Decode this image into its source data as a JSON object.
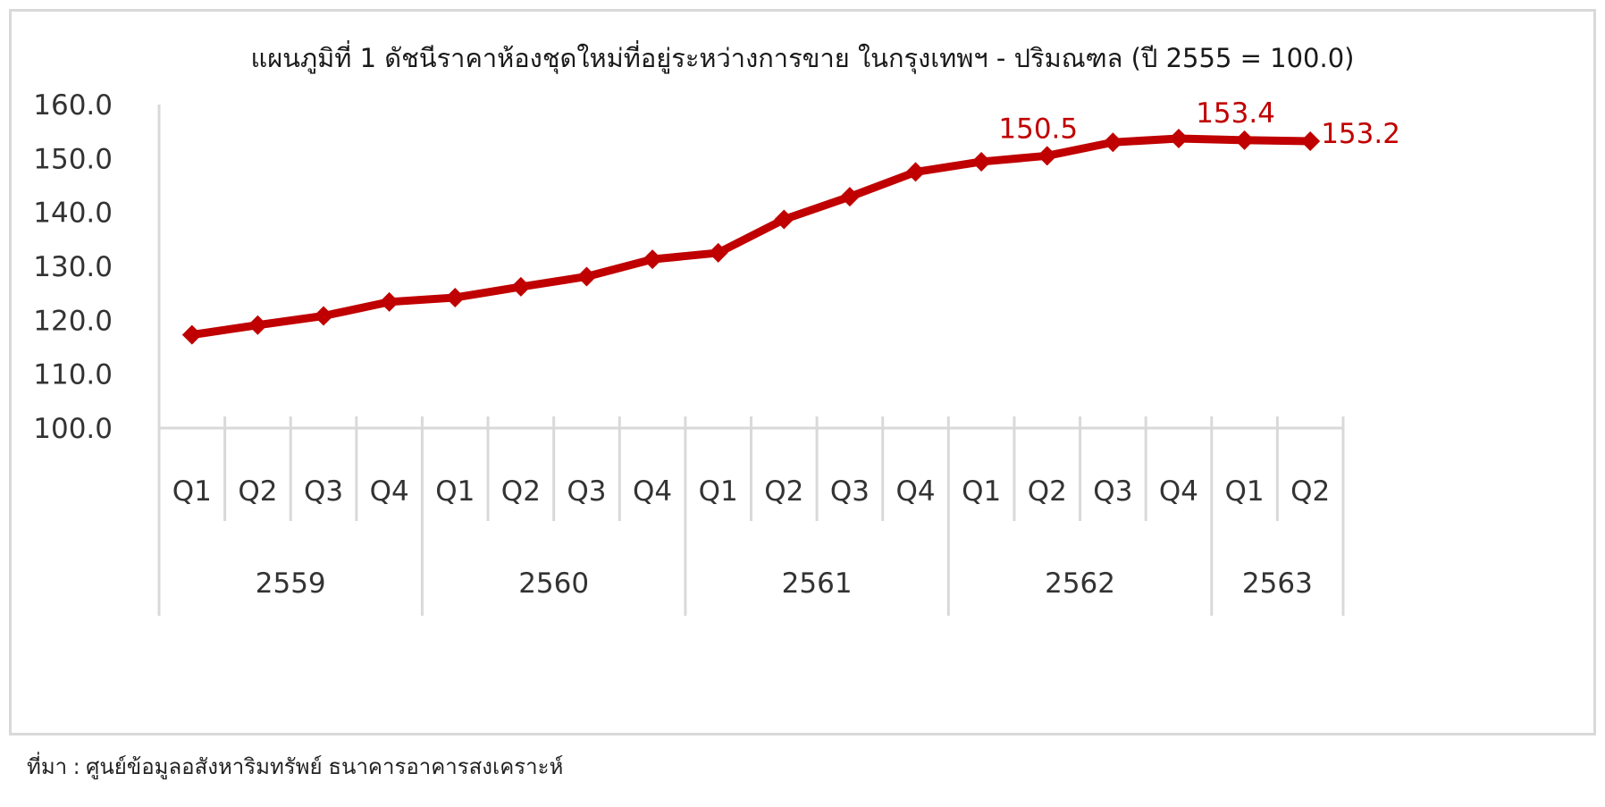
{
  "chart_data": {
    "type": "line",
    "title": "แผนภูมิที่ 1 ดัชนีราคาห้องชุดใหม่ที่อยู่ระหว่างการขาย ในกรุงเทพฯ - ปริมณฑล (ปี 2555 = 100.0)",
    "xlabel": "",
    "ylabel": "",
    "ylim": [
      100,
      160
    ],
    "yticks": [
      "100.0",
      "110.0",
      "120.0",
      "130.0",
      "140.0",
      "150.0",
      "160.0"
    ],
    "grid": false,
    "categories": [
      "Q1",
      "Q2",
      "Q3",
      "Q4",
      "Q1",
      "Q2",
      "Q3",
      "Q4",
      "Q1",
      "Q2",
      "Q3",
      "Q4",
      "Q1",
      "Q2",
      "Q3",
      "Q4",
      "Q1",
      "Q2"
    ],
    "year_groups": [
      {
        "label": "2559",
        "quarters": 4
      },
      {
        "label": "2560",
        "quarters": 4
      },
      {
        "label": "2561",
        "quarters": 4
      },
      {
        "label": "2562",
        "quarters": 4
      },
      {
        "label": "2563",
        "quarters": 2
      }
    ],
    "series": [
      {
        "values": [
          117.3,
          119.1,
          120.8,
          123.4,
          124.2,
          126.2,
          128.1,
          131.3,
          132.5,
          138.7,
          142.9,
          147.5,
          149.4,
          150.5,
          153.0,
          153.7,
          153.4,
          153.2
        ],
        "color": "#c00000",
        "data_labels": [
          {
            "index": 13,
            "text": "150.5"
          },
          {
            "index": 16,
            "text": "153.4"
          },
          {
            "index": 17,
            "text": "153.2"
          }
        ]
      }
    ]
  },
  "footer": {
    "source": "ที่มา : ศูนย์ข้อมูลอสังหาริมทรัพย์ ธนาคารอาคารสงเคราะห์"
  }
}
